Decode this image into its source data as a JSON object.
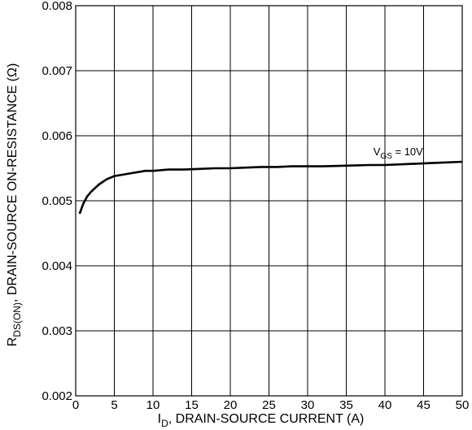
{
  "chart_data": {
    "type": "line",
    "xlabel": {
      "main": "I",
      "sub": "D",
      "rest": ", DRAIN-SOURCE CURRENT (A)"
    },
    "ylabel": {
      "main": "R",
      "sub": "DS(ON)",
      "rest": ", DRAIN-SOURCE ON-RESISTANCE (Ω)"
    },
    "xlim": [
      0,
      50
    ],
    "ylim": [
      0.002,
      0.008
    ],
    "xticks": [
      "0",
      "5",
      "10",
      "15",
      "20",
      "25",
      "30",
      "35",
      "40",
      "45",
      "50"
    ],
    "yticks": [
      "0.002",
      "0.003",
      "0.004",
      "0.005",
      "0.006",
      "0.007",
      "0.008"
    ],
    "grid": true,
    "series": [
      {
        "x": [
          0.5,
          1,
          1.5,
          2,
          3,
          4,
          5,
          6,
          7,
          8,
          9,
          10,
          12,
          14,
          16,
          18,
          20,
          22,
          24,
          26,
          28,
          30,
          32,
          35,
          38,
          40,
          42,
          44,
          46,
          48,
          50
        ],
        "y": [
          0.0048,
          0.00496,
          0.00507,
          0.00514,
          0.00525,
          0.00533,
          0.00538,
          0.0054,
          0.00542,
          0.00544,
          0.00546,
          0.00546,
          0.00548,
          0.00548,
          0.00549,
          0.0055,
          0.0055,
          0.00551,
          0.00552,
          0.00552,
          0.00553,
          0.00553,
          0.00553,
          0.00554,
          0.00555,
          0.00555,
          0.00556,
          0.00557,
          0.00558,
          0.00559,
          0.0056
        ]
      }
    ],
    "annotation": {
      "main": "V",
      "sub": "GS",
      "rest": " = 10V",
      "x": 38.5,
      "y": 0.0057
    }
  }
}
